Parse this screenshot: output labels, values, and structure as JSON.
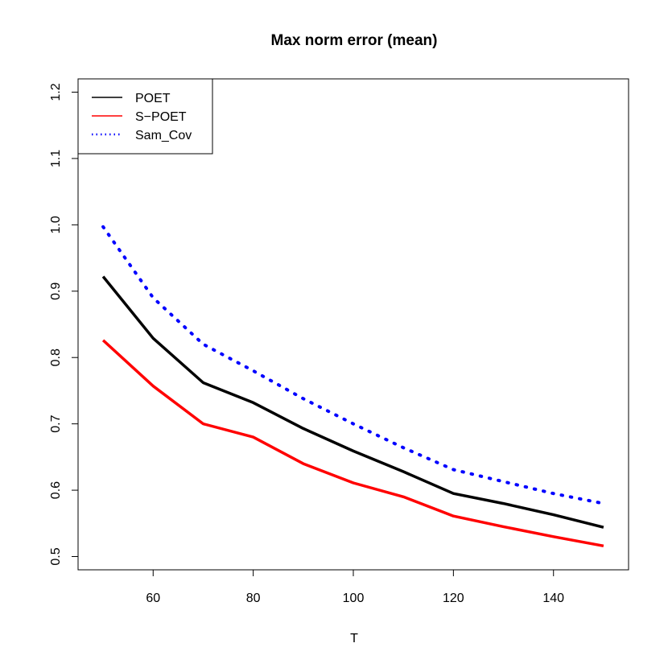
{
  "chart_data": {
    "type": "line",
    "title": "Max norm error (mean)",
    "xlabel": "T",
    "ylabel": "",
    "xlim": [
      45,
      155
    ],
    "ylim": [
      0.48,
      1.22
    ],
    "x_ticks": [
      60,
      80,
      100,
      120,
      140
    ],
    "y_ticks": [
      0.5,
      0.6,
      0.7,
      0.8,
      0.9,
      1.0,
      1.1,
      1.2
    ],
    "x_tick_labels": [
      "60",
      "80",
      "100",
      "120",
      "140"
    ],
    "y_tick_labels": [
      "0.5",
      "0.6",
      "0.7",
      "0.8",
      "0.9",
      "1.0",
      "1.1",
      "1.2"
    ],
    "x": [
      50,
      60,
      70,
      80,
      90,
      100,
      110,
      120,
      130,
      140,
      150
    ],
    "grid": false,
    "legend_position": "top-left",
    "series": [
      {
        "name": "POET",
        "color": "#000000",
        "style": "solid",
        "values": [
          0.922,
          0.829,
          0.762,
          0.732,
          0.693,
          0.659,
          0.628,
          0.595,
          0.58,
          0.563,
          0.544
        ]
      },
      {
        "name": "S−POET",
        "color": "#ff0000",
        "style": "solid",
        "values": [
          0.826,
          0.757,
          0.7,
          0.68,
          0.64,
          0.611,
          0.59,
          0.561,
          0.545,
          0.53,
          0.516
        ]
      },
      {
        "name": "Sam_Cov",
        "color": "#0000ff",
        "style": "dotted",
        "values": [
          0.997,
          0.89,
          0.82,
          0.78,
          0.738,
          0.7,
          0.664,
          0.631,
          0.613,
          0.595,
          0.58
        ]
      }
    ]
  }
}
